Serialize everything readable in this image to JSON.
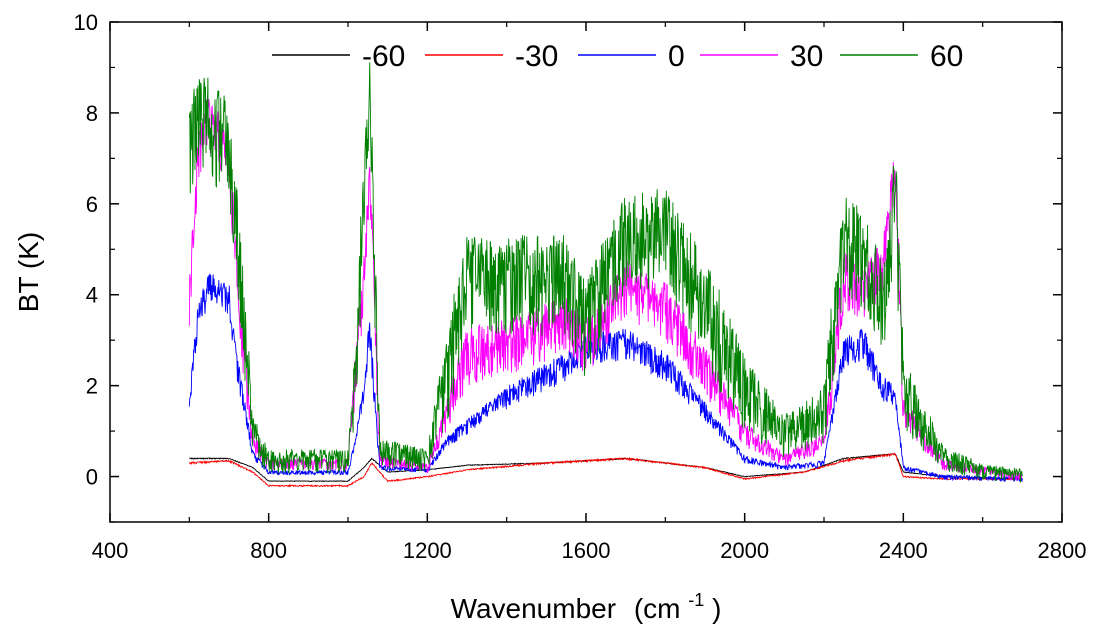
{
  "chart_data": {
    "type": "line",
    "xlabel": "Wavenumber",
    "xlabel_unit_prefix": "(cm",
    "xlabel_unit_sup": "-1",
    "xlabel_unit_suffix": ")",
    "ylabel": "BT (K)",
    "xlim": [
      400,
      2800
    ],
    "ylim": [
      -1,
      10
    ],
    "x_ticks": [
      400,
      800,
      1200,
      1600,
      2000,
      2400,
      2800
    ],
    "y_ticks": [
      0,
      2,
      4,
      6,
      8,
      10
    ],
    "legend_position": "top",
    "series": [
      {
        "name": "-60",
        "color": "#000000",
        "x": [
          600,
          700,
          760,
          800,
          1000,
          1040,
          1060,
          1100,
          1200,
          1300,
          1500,
          1700,
          1900,
          2000,
          2150,
          2250,
          2380,
          2400,
          2500,
          2700
        ],
        "y": [
          0.4,
          0.4,
          0.2,
          -0.1,
          -0.1,
          0.2,
          0.4,
          0.1,
          0.15,
          0.25,
          0.3,
          0.4,
          0.2,
          0.0,
          0.1,
          0.4,
          0.5,
          0.1,
          0.0,
          -0.05
        ],
        "noise": 0.06
      },
      {
        "name": "-30",
        "color": "#ff0000",
        "x": [
          600,
          700,
          760,
          800,
          1000,
          1040,
          1060,
          1100,
          1200,
          1300,
          1500,
          1700,
          1900,
          2000,
          2150,
          2250,
          2380,
          2400,
          2500,
          2700
        ],
        "y": [
          0.3,
          0.35,
          0.1,
          -0.2,
          -0.2,
          0.0,
          0.3,
          -0.1,
          0.0,
          0.15,
          0.3,
          0.4,
          0.2,
          -0.05,
          0.1,
          0.35,
          0.5,
          0.0,
          -0.05,
          -0.05
        ],
        "noise": 0.12
      },
      {
        "name": "0",
        "color": "#0000ff",
        "x": [
          600,
          620,
          650,
          700,
          720,
          760,
          800,
          1000,
          1020,
          1040,
          1055,
          1080,
          1200,
          1250,
          1400,
          1550,
          1600,
          1700,
          1800,
          1900,
          2000,
          2100,
          2200,
          2250,
          2300,
          2350,
          2380,
          2400,
          2500,
          2700
        ],
        "y": [
          1.5,
          3.5,
          4.3,
          4.0,
          2.5,
          0.5,
          0.1,
          0.1,
          0.8,
          2.0,
          3.3,
          0.2,
          0.15,
          0.8,
          1.8,
          2.5,
          2.9,
          3.0,
          2.5,
          1.5,
          0.4,
          0.2,
          0.3,
          2.8,
          3.0,
          2.0,
          1.8,
          0.2,
          0.0,
          -0.05
        ],
        "noise": 0.45
      },
      {
        "name": "30",
        "color": "#ff00ff",
        "x": [
          600,
          620,
          640,
          700,
          720,
          760,
          800,
          1000,
          1020,
          1040,
          1055,
          1080,
          1200,
          1250,
          1300,
          1400,
          1550,
          1600,
          1700,
          1800,
          1900,
          2000,
          2100,
          2200,
          2250,
          2300,
          2350,
          2380,
          2400,
          2500,
          2700
        ],
        "y": [
          4.0,
          7.0,
          8.0,
          7.2,
          4.5,
          0.8,
          0.3,
          0.3,
          2.5,
          4.5,
          6.8,
          0.4,
          0.2,
          1.5,
          2.8,
          3.0,
          3.5,
          3.0,
          4.3,
          3.8,
          2.5,
          1.0,
          0.4,
          0.8,
          4.5,
          4.2,
          4.8,
          7.0,
          1.5,
          0.3,
          0.0
        ],
        "noise": 0.8
      },
      {
        "name": "60",
        "color": "#008000",
        "x": [
          600,
          620,
          640,
          700,
          720,
          760,
          800,
          1000,
          1020,
          1040,
          1055,
          1080,
          1200,
          1250,
          1300,
          1400,
          1550,
          1600,
          1700,
          1800,
          1900,
          2000,
          2100,
          2200,
          2250,
          2300,
          2350,
          2380,
          2400,
          2500,
          2600,
          2700
        ],
        "y": [
          7.5,
          8.2,
          8.0,
          7.5,
          5.5,
          1.0,
          0.4,
          0.4,
          2.5,
          6.5,
          8.5,
          0.6,
          0.4,
          2.5,
          4.5,
          4.5,
          4.5,
          3.5,
          5.5,
          5.5,
          4.0,
          2.0,
          1.0,
          1.5,
          5.5,
          5.0,
          4.0,
          6.5,
          2.0,
          0.5,
          0.15,
          0.05
        ],
        "noise": 1.4
      }
    ]
  }
}
